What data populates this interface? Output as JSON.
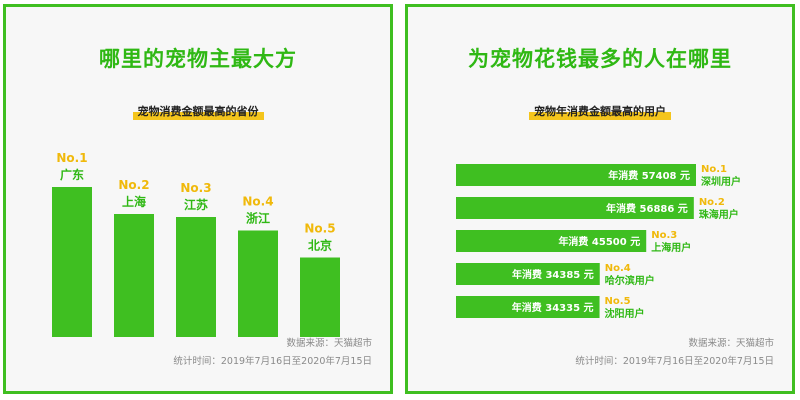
{
  "colors": {
    "accent": "#3fbf21",
    "label_gold": "#f0b90b",
    "title_green": "#2fb814"
  },
  "left": {
    "title": "哪里的宠物主最大方",
    "subtitle": "宠物消费金额最高的省份",
    "source": "数据来源：天猫超市",
    "period": "统计时间：2019年7月16日至2020年7月15日"
  },
  "right": {
    "title": "为宠物花钱最多的人在哪里",
    "subtitle": "宠物年消费金额最高的用户",
    "source": "数据来源：天猫超市",
    "period": "统计时间：2019年7月16日至2020年7月15日"
  },
  "chart_data": [
    {
      "type": "bar",
      "title": "宠物消费金额最高的省份",
      "categories": [
        "广东",
        "上海",
        "江苏",
        "浙江",
        "北京"
      ],
      "ranks": [
        "No.1",
        "No.2",
        "No.3",
        "No.4",
        "No.5"
      ],
      "values": [
        100,
        82,
        80,
        71,
        53
      ],
      "ylim": [
        0,
        100
      ],
      "grid": false,
      "legend": "none"
    },
    {
      "type": "bar",
      "orientation": "horizontal",
      "title": "宠物年消费金额最高的用户",
      "categories": [
        "深圳用户",
        "珠海用户",
        "上海用户",
        "哈尔滨用户",
        "沈阳用户"
      ],
      "ranks": [
        "No.1",
        "No.2",
        "No.3",
        "No.4",
        "No.5"
      ],
      "values": [
        57408,
        56886,
        45500,
        34385,
        34335
      ],
      "value_labels": [
        "年消费 57408 元",
        "年消费 56886 元",
        "年消费 45500 元",
        "年消费 34385 元",
        "年消费 34335 元"
      ],
      "xlim": [
        0,
        57408
      ],
      "grid": false,
      "legend": "none"
    }
  ]
}
